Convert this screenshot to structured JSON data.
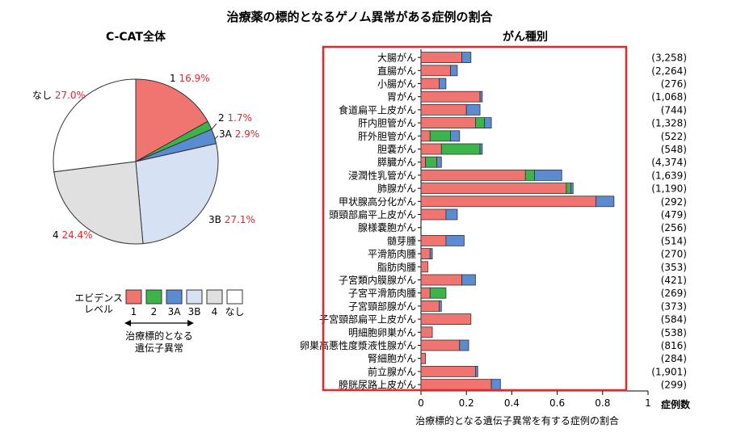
{
  "title": "治療薬の標的となるゲノム異常がある症例の割合",
  "pie": {
    "title": "C-CAT全体",
    "slices": [
      {
        "level": "1",
        "label": "1",
        "value": 16.9,
        "pct": "16.9%",
        "color": "#f07470"
      },
      {
        "level": "2",
        "label": "2",
        "value": 1.7,
        "pct": "1.7%",
        "color": "#3cb44a"
      },
      {
        "level": "3A",
        "label": "3A",
        "value": 2.9,
        "pct": "2.9%",
        "color": "#5b8bd0"
      },
      {
        "level": "3B",
        "label": "3B",
        "value": 27.1,
        "pct": "27.1%",
        "color": "#d6e2f3"
      },
      {
        "level": "4",
        "label": "4",
        "value": 24.4,
        "pct": "24.4%",
        "color": "#e0e0e0"
      },
      {
        "level": "none",
        "label": "なし",
        "value": 27.0,
        "pct": "27.0%",
        "color": "#ffffff"
      }
    ]
  },
  "legend": {
    "title_line1": "エビデンス",
    "title_line2": "レベル",
    "labels": [
      "1",
      "2",
      "3A",
      "3B",
      "4",
      "なし"
    ],
    "arrow_text_line1": "治療標的となる",
    "arrow_text_line2": "遺伝子異常"
  },
  "chart_data": {
    "type": "bar",
    "orientation": "horizontal",
    "stacked": true,
    "title": "がん種別",
    "xlabel": "治療標的となる遺伝子異常を有する症例の割合",
    "count_label": "症例数",
    "xlim": [
      0,
      1
    ],
    "xticks": [
      "0",
      "0.2",
      "0.4",
      "0.6",
      "0.8",
      "1"
    ],
    "categories": [
      "大腸がん",
      "直腸がん",
      "小腸がん",
      "胃がん",
      "食道扁平上皮がん",
      "肝内胆管がん",
      "肝外胆管がん",
      "胆嚢がん",
      "膵臓がん",
      "浸潤性乳管がん",
      "肺腺がん",
      "甲状腺高分化がん",
      "頭頸部扁平上皮がん",
      "腺様嚢胞がん",
      "髄芽腫",
      "平滑筋肉腫",
      "脂肪肉腫",
      "子宮類内膜腺がん",
      "子宮平滑筋肉腫",
      "子宮頸部腺がん",
      "子宮頸部扁平上皮がん",
      "明細胞卵巣がん",
      "卵巣高悪性度漿液性腺がん",
      "腎細胞がん",
      "前立腺がん",
      "膀胱尿路上皮がん"
    ],
    "counts": [
      "(3,258)",
      "(2,264)",
      "(276)",
      "(1,068)",
      "(744)",
      "(1,328)",
      "(522)",
      "(548)",
      "(4,374)",
      "(1,639)",
      "(1,190)",
      "(292)",
      "(479)",
      "(256)",
      "(514)",
      "(270)",
      "(353)",
      "(421)",
      "(269)",
      "(373)",
      "(584)",
      "(538)",
      "(816)",
      "(284)",
      "(1,901)",
      "(299)"
    ],
    "series": [
      {
        "name": "1",
        "color": "#f07470",
        "values": [
          0.18,
          0.13,
          0.08,
          0.26,
          0.2,
          0.24,
          0.04,
          0.09,
          0.02,
          0.46,
          0.64,
          0.77,
          0.11,
          0.0,
          0.11,
          0.04,
          0.03,
          0.18,
          0.04,
          0.08,
          0.22,
          0.05,
          0.17,
          0.02,
          0.24,
          0.31
        ]
      },
      {
        "name": "2",
        "color": "#3cb44a",
        "values": [
          0.0,
          0.0,
          0.0,
          0.0,
          0.0,
          0.04,
          0.09,
          0.17,
          0.05,
          0.04,
          0.02,
          0.0,
          0.0,
          0.0,
          0.0,
          0.0,
          0.0,
          0.0,
          0.07,
          0.0,
          0.0,
          0.0,
          0.0,
          0.0,
          0.0,
          0.0
        ]
      },
      {
        "name": "3A",
        "color": "#5b8bd0",
        "values": [
          0.04,
          0.03,
          0.03,
          0.01,
          0.06,
          0.03,
          0.04,
          0.01,
          0.02,
          0.12,
          0.01,
          0.08,
          0.05,
          0.0,
          0.08,
          0.01,
          0.0,
          0.06,
          0.0,
          0.01,
          0.0,
          0.0,
          0.04,
          0.0,
          0.01,
          0.04
        ]
      }
    ]
  }
}
